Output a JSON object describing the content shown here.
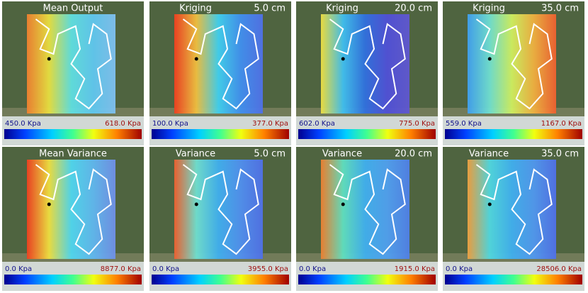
{
  "panels": [
    {
      "title": "Mean Output",
      "min_label": "450.0 Kpa",
      "max_label": "618.0 Kpa"
    },
    {
      "title": "Kriging",
      "depth": "5.0 cm",
      "min_label": "100.0 Kpa",
      "max_label": "377.0 Kpa"
    },
    {
      "title": "Kriging",
      "depth": "20.0 cm",
      "min_label": "602.0 Kpa",
      "max_label": "775.0 Kpa"
    },
    {
      "title": "Kriging",
      "depth": "35.0 cm",
      "min_label": "559.0 Kpa",
      "max_label": "1167.0 Kpa"
    },
    {
      "title": "Mean Variance",
      "min_label": "0.0 Kpa",
      "max_label": "8877.0 Kpa"
    },
    {
      "title": "Variance",
      "depth": "5.0 cm",
      "min_label": "0.0 Kpa",
      "max_label": "3955.0 Kpa"
    },
    {
      "title": "Variance",
      "depth": "20.0 cm",
      "min_label": "0.0 Kpa",
      "max_label": "1915.0 Kpa"
    },
    {
      "title": "Variance",
      "depth": "35.0 cm",
      "min_label": "0.0 Kpa",
      "max_label": "28506.0 Kpa"
    }
  ]
}
